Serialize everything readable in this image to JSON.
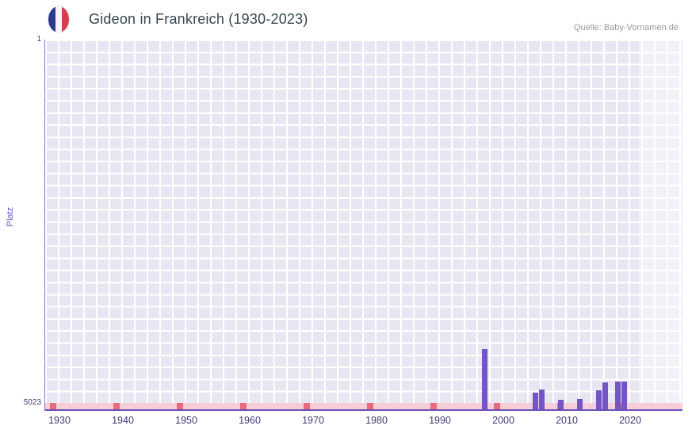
{
  "header": {
    "title": "Gideon in Frankreich (1930-2023)",
    "source": "Quelle: Baby-Vornamen.de",
    "flag_icon": "france-flag-icon",
    "flag_colors": [
      "#2b3990",
      "#f5f5f5",
      "#d6404e"
    ]
  },
  "chart_data": {
    "type": "bar",
    "title": "Gideon in Frankreich (1930-2023)",
    "xlabel": "",
    "ylabel": "Platz",
    "grid": true,
    "y_axis": {
      "top_label": "1",
      "bottom_label": "5023",
      "min": 1,
      "max": 5023,
      "inverted": true
    },
    "x_axis": {
      "range": [
        1928,
        2028
      ],
      "tick_years": [
        1930,
        1940,
        1950,
        1960,
        1970,
        1980,
        1990,
        2000,
        2010,
        2020
      ],
      "tick_labels": [
        "1930",
        "1940",
        "1950",
        "1960",
        "1970",
        "1980",
        "1990",
        "2000",
        "2010",
        "2020"
      ]
    },
    "series": [
      {
        "name": "Platz",
        "points": [
          {
            "year": 1997,
            "rank": 4280
          },
          {
            "year": 2005,
            "rank": 4880
          },
          {
            "year": 2006,
            "rank": 4840
          },
          {
            "year": 2009,
            "rank": 4980
          },
          {
            "year": 2012,
            "rank": 4970
          },
          {
            "year": 2015,
            "rank": 4850
          },
          {
            "year": 2016,
            "rank": 4740
          },
          {
            "year": 2018,
            "rank": 4730
          },
          {
            "year": 2019,
            "rank": 4730
          }
        ]
      }
    ],
    "highlight_band": {
      "from_year": 2021.4,
      "to_year": 2028
    },
    "no_data_strip": {
      "strip_color": "#f6ced8",
      "mark_color": "#e96a7e",
      "mark_years": [
        1929,
        1939,
        1949,
        1959,
        1969,
        1979,
        1989,
        1999,
        2009,
        2019
      ]
    },
    "colors": {
      "bar": "#7356c4",
      "axis": "#6a51ba",
      "plot_bg": "#e9e6f3",
      "grid_line": "#ffffff",
      "tick_text": "#3c3c74",
      "title_text": "#36454e",
      "source_text": "#999999"
    }
  }
}
